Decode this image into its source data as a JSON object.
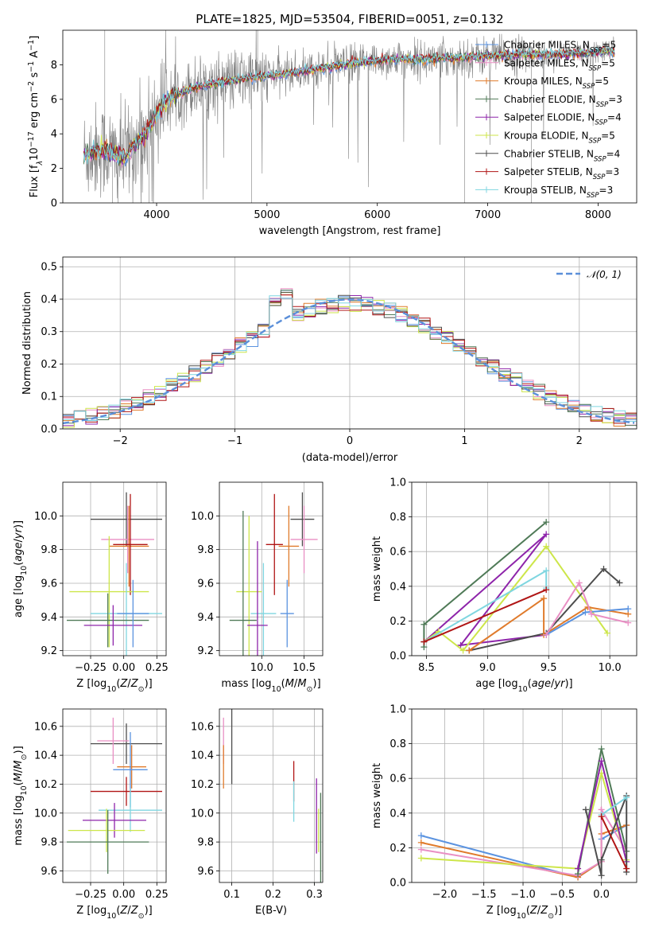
{
  "title": "PLATE=1825, MJD=53504, FIBERID=0051, z=0.132",
  "colors": {
    "Chabrier MILES": "#5b93e0",
    "Salpeter MILES": "#e98fc4",
    "Kroupa MILES": "#e07b2c",
    "Chabrier ELODIE": "#4f7a57",
    "Salpeter ELODIE": "#8e24aa",
    "Kroupa ELODIE": "#cde64a",
    "Chabrier STELIB": "#4d4d4d",
    "Salpeter STELIB": "#b01515",
    "Kroupa STELIB": "#7fd6e0",
    "data": "#808080",
    "gaussian": "#5b8fd9"
  },
  "chart_data": [
    {
      "id": "spectrum",
      "type": "line",
      "xlabel": "wavelength [Angstrom, rest frame]",
      "ylabel_parts": [
        "Flux [f",
        "λ",
        "10",
        "−17",
        " erg cm",
        "−2",
        " s",
        "−1",
        " A",
        "−1",
        "]"
      ],
      "xlim": [
        3150,
        8350
      ],
      "ylim": [
        0,
        10
      ],
      "xticks": [
        4000,
        5000,
        6000,
        7000,
        8000
      ],
      "yticks": [
        0,
        2,
        4,
        6,
        8
      ],
      "legend_position": "right",
      "legend": [
        {
          "name": "Chabrier MILES",
          "nssp": "5"
        },
        {
          "name": "Salpeter MILES",
          "nssp": "5"
        },
        {
          "name": "Kroupa MILES",
          "nssp": "5"
        },
        {
          "name": "Chabrier ELODIE",
          "nssp": "3"
        },
        {
          "name": "Salpeter ELODIE",
          "nssp": "4"
        },
        {
          "name": "Kroupa ELODIE",
          "nssp": "5"
        },
        {
          "name": "Chabrier STELIB",
          "nssp": "4"
        },
        {
          "name": "Salpeter STELIB",
          "nssp": "3"
        },
        {
          "name": "Kroupa STELIB",
          "nssp": "3"
        }
      ],
      "continuum": {
        "x": [
          3340,
          3500,
          3700,
          3800,
          3900,
          4000,
          4100,
          4300,
          4600,
          4900,
          5200,
          5500,
          5800,
          6100,
          6400,
          6700,
          7000,
          7300,
          7600,
          7900,
          8150
        ],
        "y": [
          2.8,
          3.1,
          2.6,
          3.4,
          4.0,
          5.2,
          6.0,
          6.6,
          7.0,
          7.3,
          7.5,
          7.8,
          8.1,
          8.3,
          8.3,
          8.4,
          8.5,
          8.6,
          8.6,
          8.7,
          8.8
        ]
      }
    },
    {
      "id": "residuals",
      "type": "line",
      "xlabel": "(data-model)/error",
      "ylabel": "Normed distribution",
      "xlim": [
        -2.5,
        2.5
      ],
      "ylim": [
        0,
        0.53
      ],
      "xticks": [
        -2,
        -1,
        0,
        1,
        2
      ],
      "yticks": [
        0.0,
        0.1,
        0.2,
        0.3,
        0.4,
        0.5
      ],
      "grid": true,
      "legend_position": "top-right",
      "gaussian_label": "𝒩(0, 1)"
    },
    {
      "id": "age-vs-Z",
      "type": "scatter",
      "xlabel": "Z [log10(Z/Z⊙)]",
      "ylabel": "age  [log10(age/yr)]",
      "xlim": [
        -0.46,
        0.32
      ],
      "ylim": [
        9.17,
        10.2
      ],
      "xticks": [
        -0.25,
        0.0,
        0.25
      ],
      "yticks": [
        9.2,
        9.4,
        9.6,
        9.8,
        10.0
      ],
      "grid": true,
      "points": [
        {
          "model": "Chabrier STELIB",
          "x": 0.02,
          "y": 9.98,
          "xerr": 0.27,
          "yerr": 0.16
        },
        {
          "model": "Salpeter MILES",
          "x": 0.03,
          "y": 9.86,
          "xerr": 0.2,
          "yerr": 0.2
        },
        {
          "model": "Kroupa MILES",
          "x": 0.04,
          "y": 9.82,
          "xerr": 0.15,
          "yerr": 0.24
        },
        {
          "model": "Salpeter STELIB",
          "x": 0.05,
          "y": 9.83,
          "xerr": 0.13,
          "yerr": 0.3
        },
        {
          "model": "Kroupa ELODIE",
          "x": -0.11,
          "y": 9.55,
          "xerr": 0.3,
          "yerr": 0.33
        },
        {
          "model": "Kroupa STELIB",
          "x": 0.02,
          "y": 9.42,
          "xerr": 0.27,
          "yerr": 0.3
        },
        {
          "model": "Chabrier ELODIE",
          "x": -0.12,
          "y": 9.38,
          "xerr": 0.31,
          "yerr": 0.16
        },
        {
          "model": "Salpeter ELODIE",
          "x": -0.08,
          "y": 9.35,
          "xerr": 0.22,
          "yerr": 0.12
        },
        {
          "model": "Chabrier MILES",
          "x": 0.07,
          "y": 9.42,
          "xerr": 0.12,
          "yerr": 0.2
        }
      ]
    },
    {
      "id": "age-vs-mass",
      "type": "scatter",
      "xlabel": "mass [log10(M/M⊙)]",
      "ylabel": "",
      "xlim": [
        9.5,
        10.72
      ],
      "ylim": [
        9.17,
        10.2
      ],
      "xticks": [
        10.0,
        10.5
      ],
      "yticks": [
        9.2,
        9.4,
        9.6,
        9.8,
        10.0
      ],
      "grid": true,
      "points": [
        {
          "model": "Chabrier STELIB",
          "x": 10.48,
          "y": 9.98,
          "xerr": 0.14,
          "yerr": 0.16
        },
        {
          "model": "Salpeter MILES",
          "x": 10.5,
          "y": 9.86,
          "xerr": 0.16,
          "yerr": 0.2
        },
        {
          "model": "Kroupa MILES",
          "x": 10.32,
          "y": 9.82,
          "xerr": 0.12,
          "yerr": 0.24
        },
        {
          "model": "Salpeter STELIB",
          "x": 10.15,
          "y": 9.83,
          "xerr": 0.1,
          "yerr": 0.3
        },
        {
          "model": "Kroupa ELODIE",
          "x": 9.85,
          "y": 9.55,
          "xerr": 0.15,
          "yerr": 0.45
        },
        {
          "model": "Kroupa STELIB",
          "x": 10.02,
          "y": 9.42,
          "xerr": 0.15,
          "yerr": 0.3
        },
        {
          "model": "Chabrier ELODIE",
          "x": 9.78,
          "y": 9.38,
          "xerr": 0.16,
          "yerr": 0.65
        },
        {
          "model": "Salpeter ELODIE",
          "x": 9.95,
          "y": 9.35,
          "xerr": 0.12,
          "yerr": 0.5
        },
        {
          "model": "Chabrier MILES",
          "x": 10.3,
          "y": 9.42,
          "xerr": 0.08,
          "yerr": 0.2
        }
      ]
    },
    {
      "id": "weight-vs-age",
      "type": "line",
      "xlabel": "age  [log10(age/yr)]",
      "ylabel": "mass weight",
      "xlim": [
        8.38,
        10.22
      ],
      "ylim": [
        0,
        1
      ],
      "xticks": [
        8.5,
        9.0,
        9.5,
        10.0
      ],
      "yticks": [
        0.0,
        0.2,
        0.4,
        0.6,
        0.8,
        1.0
      ],
      "grid": true,
      "series": [
        {
          "model": "Chabrier ELODIE",
          "x": [
            8.48,
            8.48,
            9.48
          ],
          "y": [
            0.05,
            0.18,
            0.77
          ]
        },
        {
          "model": "Salpeter ELODIE",
          "x": [
            8.48,
            9.48,
            8.78,
            9.48
          ],
          "y": [
            0.08,
            0.7,
            0.06,
            0.12
          ]
        },
        {
          "model": "Kroupa ELODIE",
          "x": [
            8.48,
            8.6,
            8.8,
            9.48,
            9.98
          ],
          "y": [
            0.08,
            0.14,
            0.03,
            0.63,
            0.13
          ]
        },
        {
          "model": "Kroupa STELIB",
          "x": [
            8.48,
            9.48,
            9.48
          ],
          "y": [
            0.08,
            0.49,
            0.39
          ]
        },
        {
          "model": "Salpeter STELIB",
          "x": [
            8.48,
            9.48
          ],
          "y": [
            0.08,
            0.38
          ]
        },
        {
          "model": "Chabrier STELIB",
          "x": [
            8.85,
            9.48,
            9.95,
            10.08
          ],
          "y": [
            0.03,
            0.13,
            0.5,
            0.42
          ]
        },
        {
          "model": "Kroupa MILES",
          "x": [
            8.85,
            9.46,
            9.46,
            9.82,
            10.15
          ],
          "y": [
            0.03,
            0.33,
            0.12,
            0.28,
            0.24
          ]
        },
        {
          "model": "Chabrier MILES",
          "x": [
            9.48,
            9.8,
            10.15
          ],
          "y": [
            0.12,
            0.25,
            0.27
          ]
        },
        {
          "model": "Salpeter MILES",
          "x": [
            9.48,
            9.75,
            9.85,
            10.15
          ],
          "y": [
            0.12,
            0.42,
            0.24,
            0.19
          ]
        }
      ]
    },
    {
      "id": "mass-vs-Z",
      "type": "scatter",
      "xlabel": "Z [log10(Z/Z⊙)]",
      "ylabel": "mass [log10(M/M⊙)]",
      "xlim": [
        -0.46,
        0.32
      ],
      "ylim": [
        9.52,
        10.72
      ],
      "xticks": [
        -0.25,
        0.0,
        0.25
      ],
      "yticks": [
        9.6,
        9.8,
        10.0,
        10.2,
        10.4,
        10.6
      ],
      "grid": true,
      "points": [
        {
          "model": "Chabrier STELIB",
          "x": 0.02,
          "y": 10.48,
          "xerr": 0.27,
          "yerr": 0.14
        },
        {
          "model": "Salpeter MILES",
          "x": -0.08,
          "y": 10.5,
          "xerr": 0.12,
          "yerr": 0.16
        },
        {
          "model": "Kroupa MILES",
          "x": 0.06,
          "y": 10.32,
          "xerr": 0.11,
          "yerr": 0.15
        },
        {
          "model": "Chabrier MILES",
          "x": 0.05,
          "y": 10.3,
          "xerr": 0.13,
          "yerr": 0.26
        },
        {
          "model": "Salpeter STELIB",
          "x": 0.02,
          "y": 10.15,
          "xerr": 0.27,
          "yerr": 0.1
        },
        {
          "model": "Kroupa STELIB",
          "x": 0.05,
          "y": 10.02,
          "xerr": 0.24,
          "yerr": 0.15
        },
        {
          "model": "Salpeter ELODIE",
          "x": -0.07,
          "y": 9.95,
          "xerr": 0.24,
          "yerr": 0.12
        },
        {
          "model": "Kroupa ELODIE",
          "x": -0.13,
          "y": 9.88,
          "xerr": 0.29,
          "yerr": 0.15
        },
        {
          "model": "Chabrier ELODIE",
          "x": -0.12,
          "y": 9.8,
          "xerr": 0.31,
          "yerr": 0.22
        }
      ]
    },
    {
      "id": "mass-vs-EBV",
      "type": "scatter",
      "xlabel": "E(B-V)",
      "ylabel": "",
      "xlim": [
        0.07,
        0.32
      ],
      "ylim": [
        9.52,
        10.72
      ],
      "xticks": [
        0.1,
        0.2,
        0.3
      ],
      "yticks": [
        9.6,
        9.8,
        10.0,
        10.2,
        10.4,
        10.6
      ],
      "grid": true,
      "points": [
        {
          "model": "Salpeter MILES",
          "x": 0.08,
          "y": 10.5,
          "xerr": 0,
          "yerr": 0.16
        },
        {
          "model": "Kroupa MILES",
          "x": 0.08,
          "y": 10.32,
          "xerr": 0,
          "yerr": 0.15
        },
        {
          "model": "Chabrier STELIB",
          "x": 0.1,
          "y": 10.48,
          "xerr": 0,
          "yerr": 0.28
        },
        {
          "model": "Salpeter STELIB",
          "x": 0.25,
          "y": 10.22,
          "xerr": 0,
          "yerr": 0.14
        },
        {
          "model": "Kroupa STELIB",
          "x": 0.25,
          "y": 10.08,
          "xerr": 0,
          "yerr": 0.14
        },
        {
          "model": "Salpeter ELODIE",
          "x": 0.305,
          "y": 9.98,
          "xerr": 0,
          "yerr": 0.26
        },
        {
          "model": "Kroupa ELODIE",
          "x": 0.31,
          "y": 9.88,
          "xerr": 0,
          "yerr": 0.15
        },
        {
          "model": "Chabrier ELODIE",
          "x": 0.315,
          "y": 9.8,
          "xerr": 0,
          "yerr": 0.34
        }
      ]
    },
    {
      "id": "weight-vs-Z",
      "type": "line",
      "xlabel": "Z [log10(Z/Z⊙)]",
      "ylabel": "mass weight",
      "xlim": [
        -2.42,
        0.45
      ],
      "ylim": [
        0,
        1
      ],
      "xticks": [
        -2.0,
        -1.5,
        -1.0,
        -0.5,
        0.0
      ],
      "yticks": [
        0.0,
        0.2,
        0.4,
        0.6,
        0.8,
        1.0
      ],
      "grid": true,
      "series": [
        {
          "model": "Chabrier MILES",
          "x": [
            -2.3,
            -0.3,
            0.0,
            0.0,
            0.32
          ],
          "y": [
            0.27,
            0.03,
            0.12,
            0.25,
            0.33
          ]
        },
        {
          "model": "Kroupa MILES",
          "x": [
            -2.3,
            -0.3,
            0.0,
            0.0,
            0.32
          ],
          "y": [
            0.23,
            0.03,
            0.12,
            0.28,
            0.33
          ]
        },
        {
          "model": "Salpeter MILES",
          "x": [
            -2.3,
            -0.3,
            0.0,
            0.0,
            0.32
          ],
          "y": [
            0.19,
            0.04,
            0.12,
            0.42,
            0.18
          ]
        },
        {
          "model": "Kroupa ELODIE",
          "x": [
            -2.3,
            -0.3,
            0.0,
            0.32
          ],
          "y": [
            0.14,
            0.08,
            0.63,
            0.13
          ]
        },
        {
          "model": "Chabrier ELODIE",
          "x": [
            -0.3,
            0.0,
            0.32
          ],
          "y": [
            0.05,
            0.77,
            0.18
          ]
        },
        {
          "model": "Salpeter ELODIE",
          "x": [
            -0.3,
            0.0,
            0.32
          ],
          "y": [
            0.08,
            0.7,
            0.12
          ]
        },
        {
          "model": "Chabrier STELIB",
          "x": [
            -0.2,
            0.0,
            0.0,
            0.32,
            0.32
          ],
          "y": [
            0.42,
            0.04,
            0.13,
            0.5,
            0.06
          ]
        },
        {
          "model": "Kroupa STELIB",
          "x": [
            0.0,
            0.32
          ],
          "y": [
            0.39,
            0.49
          ]
        },
        {
          "model": "Salpeter STELIB",
          "x": [
            0.0,
            0.32
          ],
          "y": [
            0.38,
            0.08
          ]
        }
      ]
    }
  ]
}
